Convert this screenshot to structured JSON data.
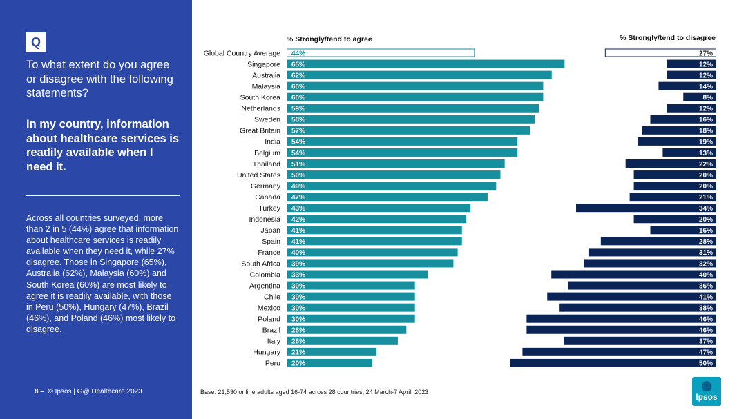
{
  "sidebar": {
    "badge": "Q",
    "question": "To what extent do you agree or disagree with the following statements?",
    "statement": "In my country, information about healthcare services is readily available when I need it.",
    "summary": "Across all countries surveyed, more than 2 in 5 (44%) agree that information about healthcare services is readily available when they need it, while 27% disagree. Those in Singapore (65%), Australia (62%), Malaysia (60%) and South Korea (60%) are most likely to agree it is readily available, with those in Peru (50%), Hungary (47%), Brazil (46%), and Poland (46%) most likely to disagree."
  },
  "footer": {
    "page": "8 –",
    "credit": "© Ipsos | G@ Healthcare 2023",
    "base": "Base: 21,530 online adults aged 16-74 across 28 countries, 24 March-7 April, 2023"
  },
  "logo": {
    "text": "Ipsos"
  },
  "colors": {
    "sidebar": "#2b47a8",
    "agree": "#168f9e",
    "disagree": "#0b2456",
    "average_outline_agree": "#168f9e",
    "average_outline_disagree": "#0b2456"
  },
  "chart_data": {
    "type": "bar",
    "title": "",
    "series": [
      {
        "name": "% Strongly/tend to agree",
        "values": [
          44,
          65,
          62,
          60,
          60,
          59,
          58,
          57,
          54,
          54,
          51,
          50,
          49,
          47,
          43,
          42,
          41,
          41,
          40,
          39,
          33,
          30,
          30,
          30,
          30,
          28,
          26,
          21,
          20
        ]
      },
      {
        "name": "% Strongly/tend to disagree",
        "values": [
          27,
          12,
          12,
          14,
          8,
          12,
          16,
          18,
          19,
          13,
          22,
          20,
          20,
          21,
          34,
          20,
          16,
          28,
          31,
          32,
          40,
          36,
          41,
          38,
          46,
          46,
          37,
          47,
          50
        ]
      }
    ],
    "categories": [
      "Global Country Average",
      "Singapore",
      "Australia",
      "Malaysia",
      "South Korea",
      "Netherlands",
      "Sweden",
      "Great Britain",
      "India",
      "Belgium",
      "Thailand",
      "United States",
      "Germany",
      "Canada",
      "Turkey",
      "Indonesia",
      "Japan",
      "Spain",
      "France",
      "South Africa",
      "Colombia",
      "Argentina",
      "Chile",
      "Mexico",
      "Poland",
      "Brazil",
      "Italy",
      "Hungary",
      "Peru"
    ],
    "xlim_agree": [
      0,
      100
    ],
    "xlim_disagree": [
      0,
      100
    ],
    "xlabel": "",
    "ylabel": "",
    "value_suffix": "%",
    "grid": false
  }
}
